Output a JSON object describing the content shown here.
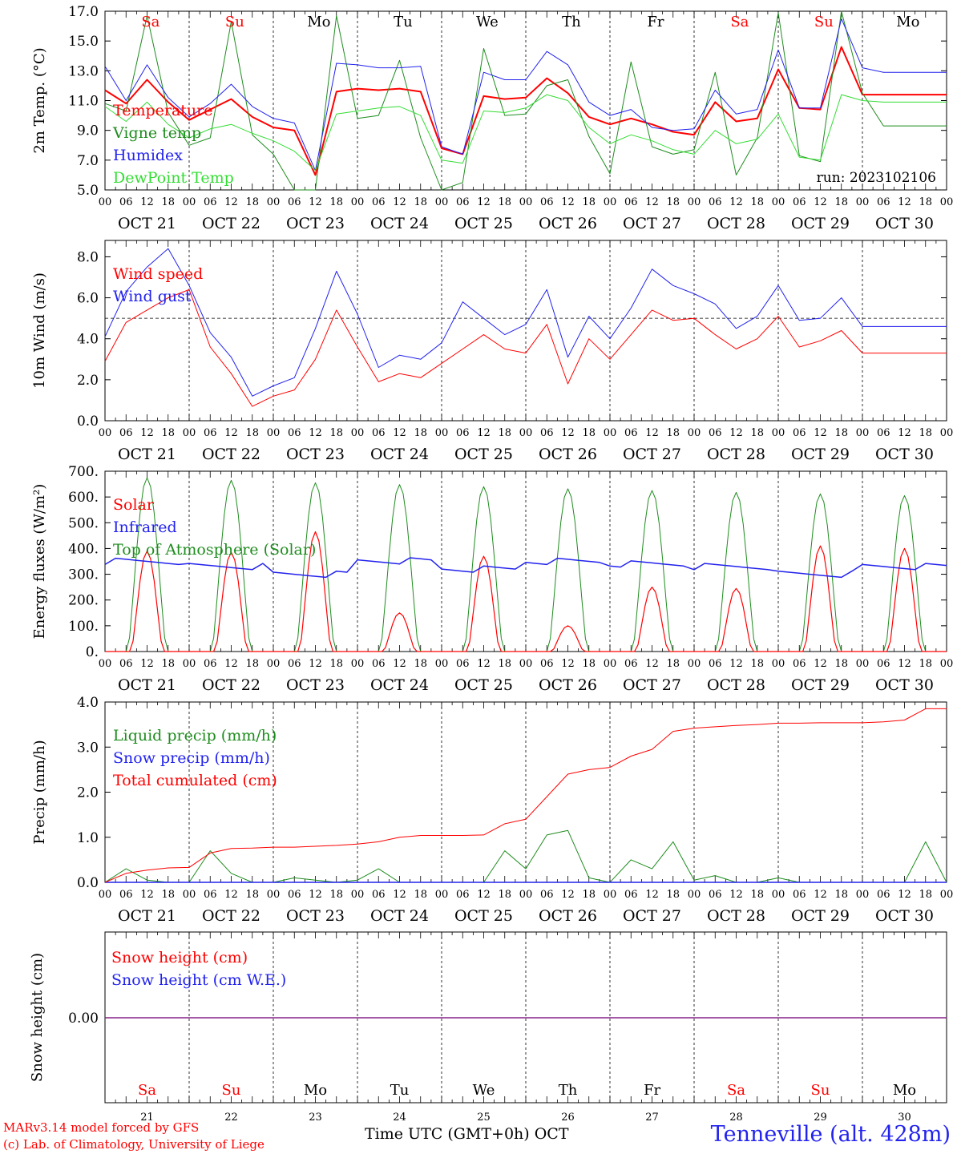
{
  "footer": {
    "credit_line1": "MARv3.14 model forced by GFS",
    "credit_line2": "(c) Lab. of Climatology, University of Liege",
    "time_label": "Time UTC (GMT+0h) OCT",
    "station": "Tenneville (alt. 428m)"
  },
  "colors": {
    "red": "#ff0000",
    "blue": "#2222ee",
    "green": "#1e8c1e",
    "lightgreen": "#33dd33",
    "purple": "#882288"
  },
  "chart_data": [
    {
      "type": "line",
      "id": "temperature",
      "ylabel": "2m Temp. (°C)",
      "ylim": [
        5,
        17
      ],
      "yticks": [
        "5.0",
        "7.0",
        "9.0",
        "11.0",
        "13.0",
        "15.0",
        "17.0"
      ],
      "annotation": "run: 2023102106",
      "weekday_labels": [
        "Sa",
        "Su",
        "Mo",
        "Tu",
        "We",
        "Th",
        "Fr",
        "Sa",
        "Su",
        "Mo"
      ],
      "weekday_colors": [
        "red",
        "red",
        "black",
        "black",
        "black",
        "black",
        "black",
        "red",
        "red",
        "black"
      ],
      "x_hours": [
        0,
        6,
        12,
        18,
        24,
        30,
        36,
        42,
        48,
        54,
        60,
        66,
        72,
        78,
        84,
        90,
        96,
        102,
        108,
        114,
        120,
        126,
        132,
        138,
        144,
        150,
        156,
        162,
        168,
        174,
        180,
        186,
        192,
        198,
        204,
        210,
        216,
        222,
        228,
        234,
        240
      ],
      "series": [
        {
          "name": "Temperature",
          "color": "red",
          "width": 2,
          "values": [
            11.7,
            10.8,
            12.4,
            10.9,
            9.7,
            10.4,
            11.1,
            9.9,
            9.2,
            9.0,
            6.0,
            11.6,
            11.8,
            11.7,
            11.8,
            11.6,
            7.8,
            7.4,
            11.3,
            11.1,
            11.2,
            12.5,
            11.5,
            9.9,
            9.4,
            9.8,
            9.4,
            8.9,
            8.7,
            10.9,
            9.6,
            9.8,
            13.1,
            10.5,
            10.4,
            14.6,
            11.4,
            11.4,
            11.4,
            11.4,
            11.4
          ]
        },
        {
          "name": "Vigne temp",
          "color": "green",
          "width": 1,
          "values": [
            10.8,
            10.3,
            16.7,
            10.2,
            8.0,
            8.5,
            16.3,
            8.7,
            7.4,
            5.0,
            5.0,
            16.7,
            9.8,
            10.0,
            13.7,
            8.5,
            4.9,
            5.5,
            14.5,
            10.0,
            10.1,
            12.0,
            12.4,
            8.6,
            6.1,
            13.6,
            7.9,
            7.4,
            7.7,
            12.9,
            6.0,
            8.5,
            16.9,
            7.3,
            6.9,
            17.5,
            11.5,
            9.3,
            9.3,
            9.3,
            9.3
          ]
        },
        {
          "name": "Humidex",
          "color": "blue",
          "width": 1,
          "values": [
            13.3,
            11.0,
            13.4,
            11.2,
            9.9,
            10.8,
            12.1,
            10.6,
            9.8,
            9.5,
            6.3,
            13.5,
            13.4,
            13.2,
            13.2,
            13.3,
            7.9,
            7.4,
            12.9,
            12.4,
            12.4,
            14.3,
            13.4,
            10.9,
            10.0,
            10.4,
            9.2,
            9.0,
            9.1,
            11.7,
            10.1,
            10.4,
            14.4,
            10.5,
            10.5,
            16.5,
            13.2,
            12.9,
            12.9,
            12.9,
            12.9
          ]
        },
        {
          "name": "DewPoint Temp",
          "color": "lightgreen",
          "width": 1,
          "values": [
            10.6,
            9.6,
            10.9,
            9.4,
            8.5,
            9.1,
            9.4,
            8.8,
            8.3,
            7.6,
            6.3,
            10.1,
            10.3,
            10.5,
            10.6,
            10.0,
            7.0,
            6.8,
            10.3,
            10.2,
            10.5,
            11.4,
            11.0,
            9.2,
            8.1,
            8.7,
            8.3,
            7.7,
            7.4,
            9.0,
            8.1,
            8.4,
            10.1,
            7.2,
            7.0,
            11.4,
            11.0,
            10.9,
            10.9,
            10.9,
            10.9
          ]
        }
      ]
    },
    {
      "type": "line",
      "id": "wind",
      "ylabel": "10m Wind (m/s)",
      "ylim": [
        0,
        8.8
      ],
      "yticks": [
        "0.0",
        "2.0",
        "4.0",
        "6.0",
        "8.0"
      ],
      "reference_line": 5.0,
      "x_hours": [
        0,
        6,
        12,
        18,
        24,
        30,
        36,
        42,
        48,
        54,
        60,
        66,
        72,
        78,
        84,
        90,
        96,
        102,
        108,
        114,
        120,
        126,
        132,
        138,
        144,
        150,
        156,
        162,
        168,
        174,
        180,
        186,
        192,
        198,
        204,
        210,
        216,
        222,
        228,
        234,
        240
      ],
      "series": [
        {
          "name": "Wind speed",
          "color": "red",
          "width": 1,
          "values": [
            2.9,
            4.8,
            5.4,
            6.0,
            6.4,
            3.6,
            2.3,
            0.7,
            1.2,
            1.5,
            3.0,
            5.4,
            3.6,
            1.9,
            2.3,
            2.1,
            2.8,
            3.5,
            4.2,
            3.5,
            3.3,
            4.7,
            1.8,
            4.0,
            3.0,
            4.2,
            5.4,
            4.9,
            5.0,
            4.2,
            3.5,
            4.0,
            5.1,
            3.6,
            3.9,
            4.4,
            3.3,
            3.3,
            3.3,
            3.3,
            3.3
          ]
        },
        {
          "name": "Wind gust",
          "color": "blue",
          "width": 1,
          "values": [
            4.1,
            6.3,
            7.5,
            8.4,
            6.6,
            4.3,
            3.1,
            1.2,
            1.7,
            2.1,
            4.5,
            7.3,
            5.2,
            2.6,
            3.2,
            3.0,
            3.8,
            5.8,
            5.0,
            4.2,
            4.7,
            6.4,
            3.1,
            5.1,
            4.0,
            5.5,
            7.4,
            6.6,
            6.2,
            5.7,
            4.5,
            5.1,
            6.6,
            4.9,
            5.0,
            6.0,
            4.6,
            4.6,
            4.6,
            4.6,
            4.6
          ]
        }
      ]
    },
    {
      "type": "line",
      "id": "energy",
      "ylabel": "Energy fluxes (W/m²)",
      "ylim": [
        0,
        700
      ],
      "yticks": [
        "0.",
        "100.",
        "200.",
        "300.",
        "400.",
        "500.",
        "600.",
        "700."
      ],
      "series_names": [
        "Solar",
        "Infrared",
        "Top of Atmosphere (Solar)"
      ],
      "series_colors": [
        "red",
        "blue",
        "green"
      ],
      "toa_daily_peak": [
        675,
        665,
        655,
        648,
        640,
        632,
        625,
        618,
        612,
        605
      ],
      "solar_daily_peak": [
        390,
        385,
        465,
        150,
        370,
        100,
        250,
        245,
        410,
        400
      ],
      "infrared_daily": [
        350,
        330,
        300,
        352,
        320,
        350,
        340,
        330,
        300,
        330
      ]
    },
    {
      "type": "line",
      "id": "precip",
      "ylabel": "Precip (mm/h)",
      "ylim": [
        0,
        4
      ],
      "yticks": [
        "0.0",
        "1.0",
        "2.0",
        "3.0",
        "4.0"
      ],
      "x_hours": [
        0,
        6,
        12,
        18,
        24,
        30,
        36,
        42,
        48,
        54,
        60,
        66,
        72,
        78,
        84,
        90,
        96,
        102,
        108,
        114,
        120,
        126,
        132,
        138,
        144,
        150,
        156,
        162,
        168,
        174,
        180,
        186,
        192,
        198,
        204,
        210,
        216,
        222,
        228,
        234,
        240
      ],
      "series": [
        {
          "name": "Liquid precip (mm/h)",
          "color": "green",
          "width": 1,
          "values": [
            0.0,
            0.3,
            0.05,
            0.0,
            0.0,
            0.7,
            0.2,
            0.0,
            0.0,
            0.1,
            0.05,
            0.0,
            0.05,
            0.3,
            0.0,
            0.0,
            0.0,
            0.0,
            0.0,
            0.7,
            0.3,
            1.05,
            1.15,
            0.1,
            0.0,
            0.5,
            0.3,
            0.9,
            0.05,
            0.15,
            0.0,
            0.0,
            0.1,
            0.0,
            0.0,
            0.0,
            0.0,
            0.0,
            0.0,
            0.9,
            0.0
          ]
        },
        {
          "name": "Snow precip (mm/h)",
          "color": "blue",
          "width": 1,
          "values": [
            0,
            0,
            0,
            0,
            0,
            0,
            0,
            0,
            0,
            0,
            0,
            0,
            0,
            0,
            0,
            0,
            0,
            0,
            0,
            0,
            0,
            0,
            0,
            0,
            0,
            0,
            0,
            0,
            0,
            0,
            0,
            0,
            0,
            0,
            0,
            0,
            0,
            0,
            0,
            0,
            0
          ]
        },
        {
          "name": "Total cumulated (cm)",
          "color": "red",
          "width": 1,
          "values": [
            0.0,
            0.2,
            0.27,
            0.32,
            0.33,
            0.65,
            0.75,
            0.76,
            0.78,
            0.78,
            0.8,
            0.82,
            0.85,
            0.9,
            1.0,
            1.04,
            1.04,
            1.04,
            1.05,
            1.3,
            1.4,
            1.9,
            2.4,
            2.5,
            2.55,
            2.8,
            2.95,
            3.35,
            3.42,
            3.45,
            3.48,
            3.5,
            3.53,
            3.53,
            3.54,
            3.54,
            3.54,
            3.56,
            3.6,
            3.85,
            3.85
          ]
        }
      ]
    },
    {
      "type": "line",
      "id": "snow",
      "ylabel": "Snow height (cm)",
      "yticks": [
        "0.00"
      ],
      "series": [
        {
          "name": "Snow height (cm)",
          "color": "red",
          "values": [
            0,
            0
          ]
        },
        {
          "name": "Snow height (cm W.E.)",
          "color": "blue",
          "values": [
            0,
            0
          ]
        }
      ],
      "weekday_labels": [
        "Sa",
        "Su",
        "Mo",
        "Tu",
        "We",
        "Th",
        "Fr",
        "Sa",
        "Su",
        "Mo"
      ],
      "weekday_colors": [
        "red",
        "red",
        "black",
        "black",
        "black",
        "black",
        "black",
        "red",
        "red",
        "black"
      ],
      "day_numbers": [
        "21",
        "22",
        "23",
        "24",
        "25",
        "26",
        "27",
        "28",
        "29",
        "30"
      ]
    }
  ],
  "x_axis": {
    "hour_ticks": [
      "00",
      "06",
      "12",
      "18"
    ],
    "final_tick": "00",
    "date_labels": [
      "OCT 21",
      "OCT 22",
      "OCT 23",
      "OCT 24",
      "OCT 25",
      "OCT 26",
      "OCT 27",
      "OCT 28",
      "OCT 29",
      "OCT 30"
    ]
  }
}
